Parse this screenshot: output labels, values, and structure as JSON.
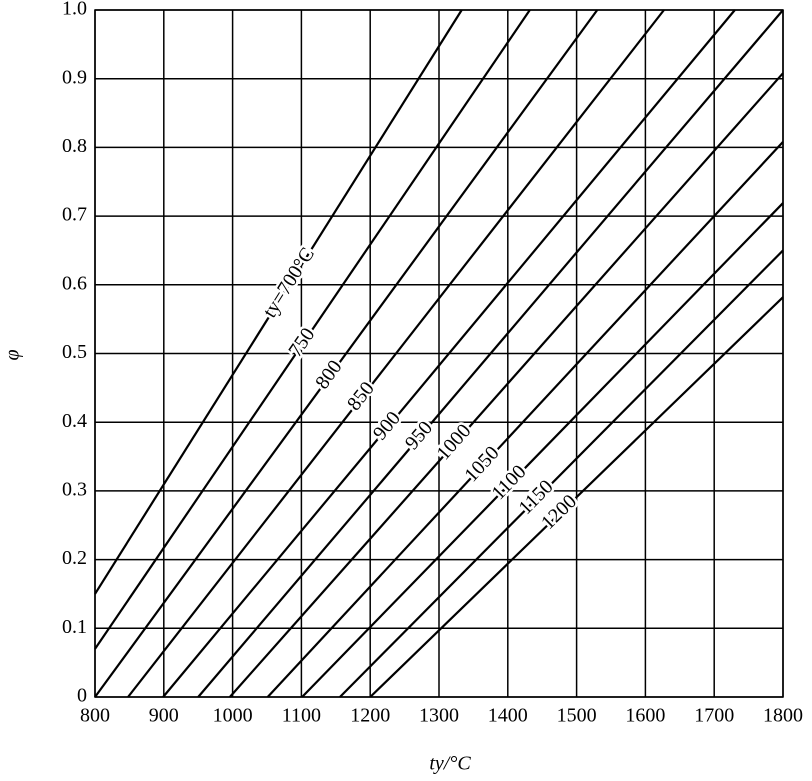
{
  "chart_data": {
    "type": "line",
    "x_label": "ty/°C",
    "y_label": "φ",
    "xlim": [
      800,
      1800
    ],
    "ylim": [
      0,
      1
    ],
    "xticks": [
      800,
      900,
      1000,
      1100,
      1200,
      1300,
      1400,
      1500,
      1600,
      1700,
      1800
    ],
    "yticks": [
      0,
      0.1,
      0.2,
      0.3,
      0.4,
      0.5,
      0.6,
      0.7,
      0.8,
      0.9,
      {
        "value": 1,
        "label": "1.0"
      }
    ],
    "grid": true,
    "series": [
      {
        "name": "ty=700°C",
        "color": "#000000",
        "x": [
          800,
          1333
        ],
        "values": [
          0.15,
          1.0
        ]
      },
      {
        "name": "750",
        "color": "#000000",
        "x": [
          800,
          1432
        ],
        "values": [
          0.07,
          1.0
        ]
      },
      {
        "name": "800",
        "color": "#000000",
        "x": [
          800,
          1530
        ],
        "values": [
          0,
          1.0
        ]
      },
      {
        "name": "850",
        "color": "#000000",
        "x": [
          848,
          1627
        ],
        "values": [
          0,
          1.0
        ]
      },
      {
        "name": "900",
        "color": "#000000",
        "x": [
          899,
          1730
        ],
        "values": [
          0,
          1.0
        ]
      },
      {
        "name": "950",
        "color": "#000000",
        "x": [
          950,
          1800
        ],
        "values": [
          0,
          1.0
        ]
      },
      {
        "name": "1000",
        "color": "#000000",
        "x": [
          996,
          1800
        ],
        "values": [
          0,
          0.908
        ]
      },
      {
        "name": "1050",
        "color": "#000000",
        "x": [
          1051,
          1800
        ],
        "values": [
          0,
          0.808
        ]
      },
      {
        "name": "1100",
        "color": "#000000",
        "x": [
          1101,
          1800
        ],
        "values": [
          0,
          0.719
        ]
      },
      {
        "name": "1150",
        "color": "#000000",
        "x": [
          1156,
          1800
        ],
        "values": [
          0,
          0.65
        ]
      },
      {
        "name": "1200",
        "color": "#000000",
        "x": [
          1200,
          1800
        ],
        "values": [
          0,
          0.582
        ]
      }
    ]
  }
}
